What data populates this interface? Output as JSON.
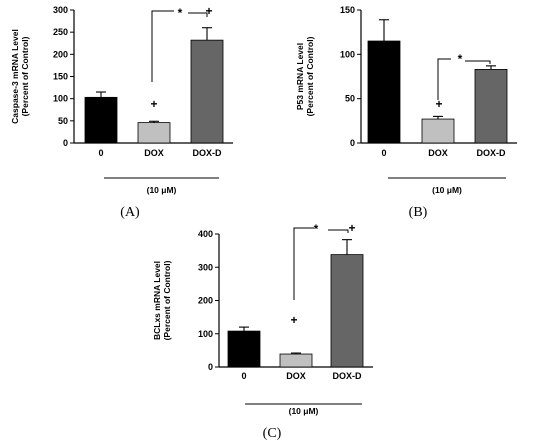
{
  "chart_data": [
    {
      "type": "bar",
      "panel_label": "(A)",
      "ylabel": [
        "Caspase-3 mRNA Level",
        "(Percent of Control)"
      ],
      "ylim": [
        0,
        300
      ],
      "yticks": [
        0,
        50,
        100,
        150,
        200,
        250,
        300
      ],
      "categories": [
        "0",
        "DOX",
        "DOX-D"
      ],
      "values": [
        103,
        46,
        232
      ],
      "errors": [
        12,
        3,
        28
      ],
      "colors": [
        "#000000",
        "#c0c0c0",
        "#666666"
      ],
      "condition": "(10 μM)",
      "plus_over": [
        "DOX",
        "DOX-D"
      ],
      "star": "*",
      "plus": "+"
    },
    {
      "type": "bar",
      "panel_label": "(B)",
      "ylabel": [
        "P53 mRNA Level",
        "(Percent of Control)"
      ],
      "ylim": [
        0,
        150
      ],
      "yticks": [
        0,
        50,
        100,
        150
      ],
      "categories": [
        "0",
        "DOX",
        "DOX-D"
      ],
      "values": [
        115,
        27,
        83
      ],
      "errors": [
        24,
        3,
        4
      ],
      "colors": [
        "#000000",
        "#c0c0c0",
        "#666666"
      ],
      "condition": "(10 μM)",
      "plus_over": [
        "DOX"
      ],
      "star": "*",
      "plus": "+"
    },
    {
      "type": "bar",
      "panel_label": "(C)",
      "ylabel": [
        "BCLxs mRNA Level",
        "(Percent of Control)"
      ],
      "ylim": [
        0,
        400
      ],
      "yticks": [
        0,
        100,
        200,
        300,
        400
      ],
      "categories": [
        "0",
        "DOX",
        "DOX-D"
      ],
      "values": [
        108,
        39,
        338
      ],
      "errors": [
        12,
        3,
        45
      ],
      "colors": [
        "#000000",
        "#c0c0c0",
        "#666666"
      ],
      "condition": "(10 μM)",
      "plus_over": [
        "DOX",
        "DOX-D"
      ],
      "star": "*",
      "plus": "+"
    }
  ]
}
